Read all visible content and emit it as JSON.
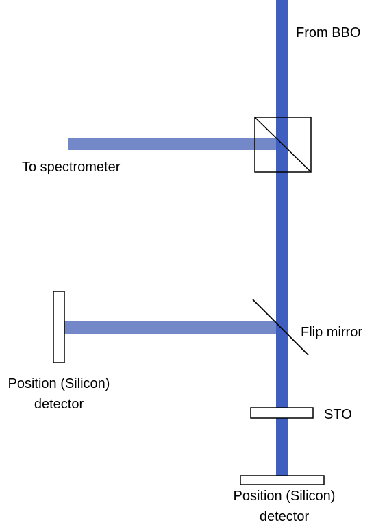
{
  "labels": {
    "from_bbo": "From BBO",
    "to_spectrometer": "To spectrometer",
    "flip_mirror": "Flip mirror",
    "sto": "STO",
    "side_detector_line1": "Position (Silicon)",
    "side_detector_line2": "detector",
    "bottom_detector_line1": "Position (Silicon)",
    "bottom_detector_line2": "detector"
  },
  "colors": {
    "main_beam": "#3f5fc0",
    "branch_beam": "#7288c8",
    "outline": "#000000",
    "background": "#ffffff"
  }
}
